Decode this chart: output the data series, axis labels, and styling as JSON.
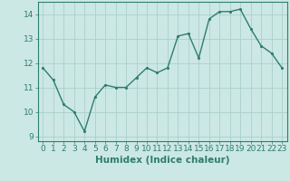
{
  "x": [
    0,
    1,
    2,
    3,
    4,
    5,
    6,
    7,
    8,
    9,
    10,
    11,
    12,
    13,
    14,
    15,
    16,
    17,
    18,
    19,
    20,
    21,
    22,
    23
  ],
  "y": [
    11.8,
    11.3,
    10.3,
    10.0,
    9.2,
    10.6,
    11.1,
    11.0,
    11.0,
    11.4,
    11.8,
    11.6,
    11.8,
    13.1,
    13.2,
    12.2,
    13.8,
    14.1,
    14.1,
    14.2,
    13.4,
    12.7,
    12.4,
    11.8
  ],
  "line_color": "#2e7d6e",
  "marker_color": "#2e7d6e",
  "bg_color": "#cce8e4",
  "grid_color": "#aacfca",
  "xlabel": "Humidex (Indice chaleur)",
  "xlim": [
    -0.5,
    23.5
  ],
  "ylim": [
    8.8,
    14.5
  ],
  "yticks": [
    9,
    10,
    11,
    12,
    13,
    14
  ],
  "xticks": [
    0,
    1,
    2,
    3,
    4,
    5,
    6,
    7,
    8,
    9,
    10,
    11,
    12,
    13,
    14,
    15,
    16,
    17,
    18,
    19,
    20,
    21,
    22,
    23
  ],
  "xlabel_fontsize": 7.5,
  "tick_fontsize": 6.5,
  "linewidth": 1.0,
  "markersize": 2.5
}
